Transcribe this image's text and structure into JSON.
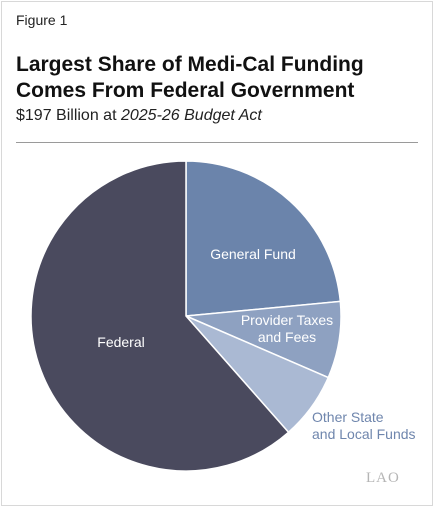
{
  "figure_label": "Figure 1",
  "chart_data": {
    "type": "pie",
    "title": "Largest Share of Medi-Cal Funding Comes From Federal Government",
    "subtitle_prefix": "$197 Billion at ",
    "subtitle_italic": "2025-26 Budget Act",
    "slices": [
      {
        "name": "General Fund",
        "label_lines": [
          "General Fund"
        ],
        "value": 23.5,
        "color": "#6b84ab",
        "label_color": "#ffffff"
      },
      {
        "name": "Provider Taxes and Fees",
        "label_lines": [
          "Provider Taxes",
          "and Fees"
        ],
        "value": 8.0,
        "color": "#8ea1c1",
        "label_color": "#ffffff"
      },
      {
        "name": "Other State and Local Funds",
        "label_lines": [
          "Other State",
          "and Local Funds"
        ],
        "value": 7.0,
        "color": "#aab9d3",
        "label_color": "#6f86ad"
      },
      {
        "name": "Federal",
        "label_lines": [
          "Federal"
        ],
        "value": 61.5,
        "color": "#4a4a5e",
        "label_color": "#ffffff"
      }
    ]
  },
  "logo_text": "LAO"
}
